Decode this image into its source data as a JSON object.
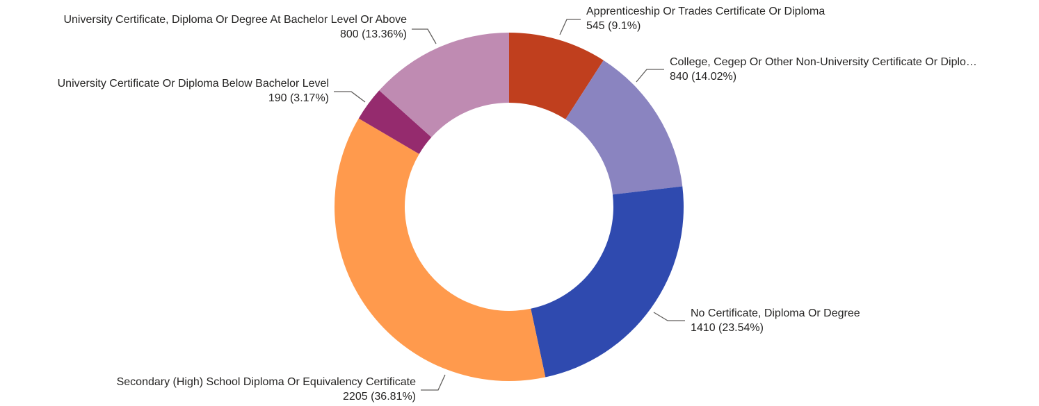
{
  "chart_data": {
    "type": "donut",
    "categories": [
      "Apprenticeship Or Trades Certificate Or Diploma",
      "College, Cegep Or Other Non-University Certificate Or Diplo…",
      "No Certificate, Diploma Or Degree",
      "Secondary (High) School Diploma Or Equivalency Certificate",
      "University Certificate Or Diploma Below Bachelor Level",
      "University Certificate, Diploma Or Degree At Bachelor Level Or Above"
    ],
    "values": [
      545,
      840,
      1410,
      2205,
      190,
      800
    ],
    "value_labels": [
      "545 (9.1%)",
      "840 (14.02%)",
      "1410 (23.54%)",
      "2205 (36.81%)",
      "190 (3.17%)",
      "800 (13.36%)"
    ],
    "colors": [
      "#C03F1E",
      "#8A84C0",
      "#2F4AAF",
      "#FF9A4D",
      "#952B6E",
      "#BF8BB2"
    ]
  }
}
